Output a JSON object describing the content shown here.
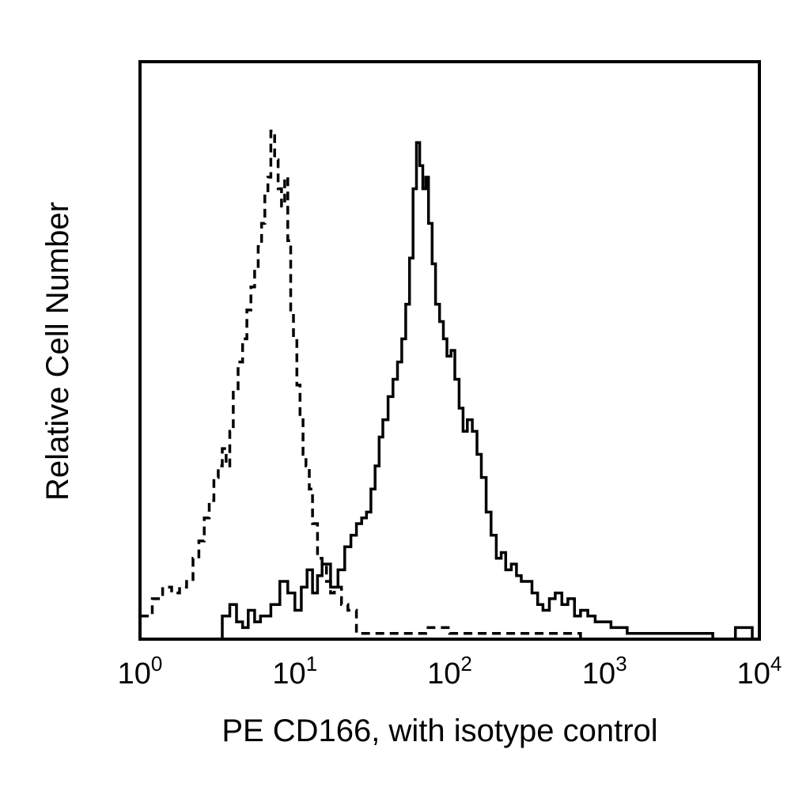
{
  "chart_data": {
    "type": "line",
    "title": "",
    "xlabel": "PE CD166, with isotype control",
    "ylabel": "Relative Cell Number",
    "x_scale": "log",
    "xlim": [
      1,
      10000
    ],
    "ylim": [
      0,
      100
    ],
    "x_ticks": [
      {
        "base": "10",
        "exp": "0",
        "value": 1
      },
      {
        "base": "10",
        "exp": "1",
        "value": 10
      },
      {
        "base": "10",
        "exp": "2",
        "value": 100
      },
      {
        "base": "10",
        "exp": "3",
        "value": 1000
      },
      {
        "base": "10",
        "exp": "4",
        "value": 10000
      }
    ],
    "grid": false,
    "legend": "none",
    "series": [
      {
        "style": "dashed",
        "x": [
          1.0,
          1.2,
          1.4,
          1.6,
          1.8,
          2.0,
          2.2,
          2.4,
          2.6,
          2.8,
          3.0,
          3.2,
          3.4,
          3.6,
          3.8,
          4.0,
          4.3,
          4.6,
          4.9,
          5.2,
          5.5,
          5.8,
          6.1,
          6.4,
          6.7,
          7.0,
          7.4,
          7.8,
          8.2,
          8.6,
          9.0,
          9.4,
          9.8,
          10.3,
          10.8,
          11.3,
          11.8,
          12.4,
          13.0,
          14.0,
          15.0,
          16.0,
          17.0,
          18.0,
          20.0,
          22.0,
          25.0,
          30.0,
          40.0,
          50.0,
          60.0,
          70.0,
          80.0,
          100.0,
          150.0,
          200.0,
          300.0,
          500.0,
          700.0
        ],
        "values": [
          4,
          7,
          9,
          8,
          9,
          10,
          14,
          17,
          21,
          24,
          28,
          30,
          33,
          30,
          36,
          43,
          48,
          52,
          57,
          61,
          64,
          68,
          72,
          77,
          80,
          88,
          83,
          78,
          75,
          80,
          69,
          57,
          52,
          44,
          38,
          32,
          30,
          26,
          20,
          14,
          13,
          10,
          8,
          9,
          6,
          5,
          1,
          1,
          1,
          1,
          1,
          2,
          2,
          1,
          1,
          1,
          1,
          1,
          0
        ]
      },
      {
        "style": "solid",
        "x": [
          3.0,
          3.4,
          3.8,
          4.2,
          4.6,
          5.0,
          5.5,
          6.0,
          7.0,
          8.0,
          9.0,
          10.0,
          11.0,
          12.0,
          13.0,
          14.0,
          15.0,
          17.0,
          19.0,
          21.0,
          23.0,
          25.0,
          27.0,
          29.0,
          31.0,
          33.0,
          35.0,
          37.0,
          40.0,
          43.0,
          46.0,
          49.0,
          52.0,
          55.0,
          58.0,
          61.0,
          64.0,
          67.0,
          70.0,
          73.0,
          77.0,
          81.0,
          86.0,
          91.0,
          96.0,
          102.0,
          108.0,
          115.0,
          122.0,
          130.0,
          140.0,
          150.0,
          160.0,
          172.0,
          185.0,
          200.0,
          215.0,
          230.0,
          250.0,
          270.0,
          290.0,
          315.0,
          340.0,
          370.0,
          400.0,
          440.0,
          480.0,
          530.0,
          580.0,
          640.0,
          700.0,
          780.0,
          870.0,
          970.0,
          1100.0,
          1250.0,
          1400.0,
          1600.0,
          1800.0,
          2000.0,
          3000.0,
          5000.0,
          7000.0,
          9000.0
        ],
        "values": [
          0,
          4,
          6,
          3,
          2,
          5,
          3,
          4,
          6,
          10,
          8,
          5,
          9,
          12,
          8,
          11,
          13,
          9,
          12,
          16,
          18,
          20,
          21,
          22,
          26,
          30,
          35,
          38,
          42,
          45,
          48,
          52,
          58,
          66,
          78,
          86,
          82,
          78,
          80,
          72,
          65,
          58,
          55,
          52,
          49,
          50,
          45,
          40,
          36,
          38,
          36,
          32,
          28,
          22,
          18,
          14,
          15,
          12,
          13,
          11,
          10,
          10,
          8,
          6,
          5,
          7,
          8,
          6,
          7,
          4,
          5,
          4,
          3,
          3,
          2,
          2,
          1,
          1,
          1,
          1,
          1,
          0,
          2,
          0
        ]
      }
    ]
  }
}
